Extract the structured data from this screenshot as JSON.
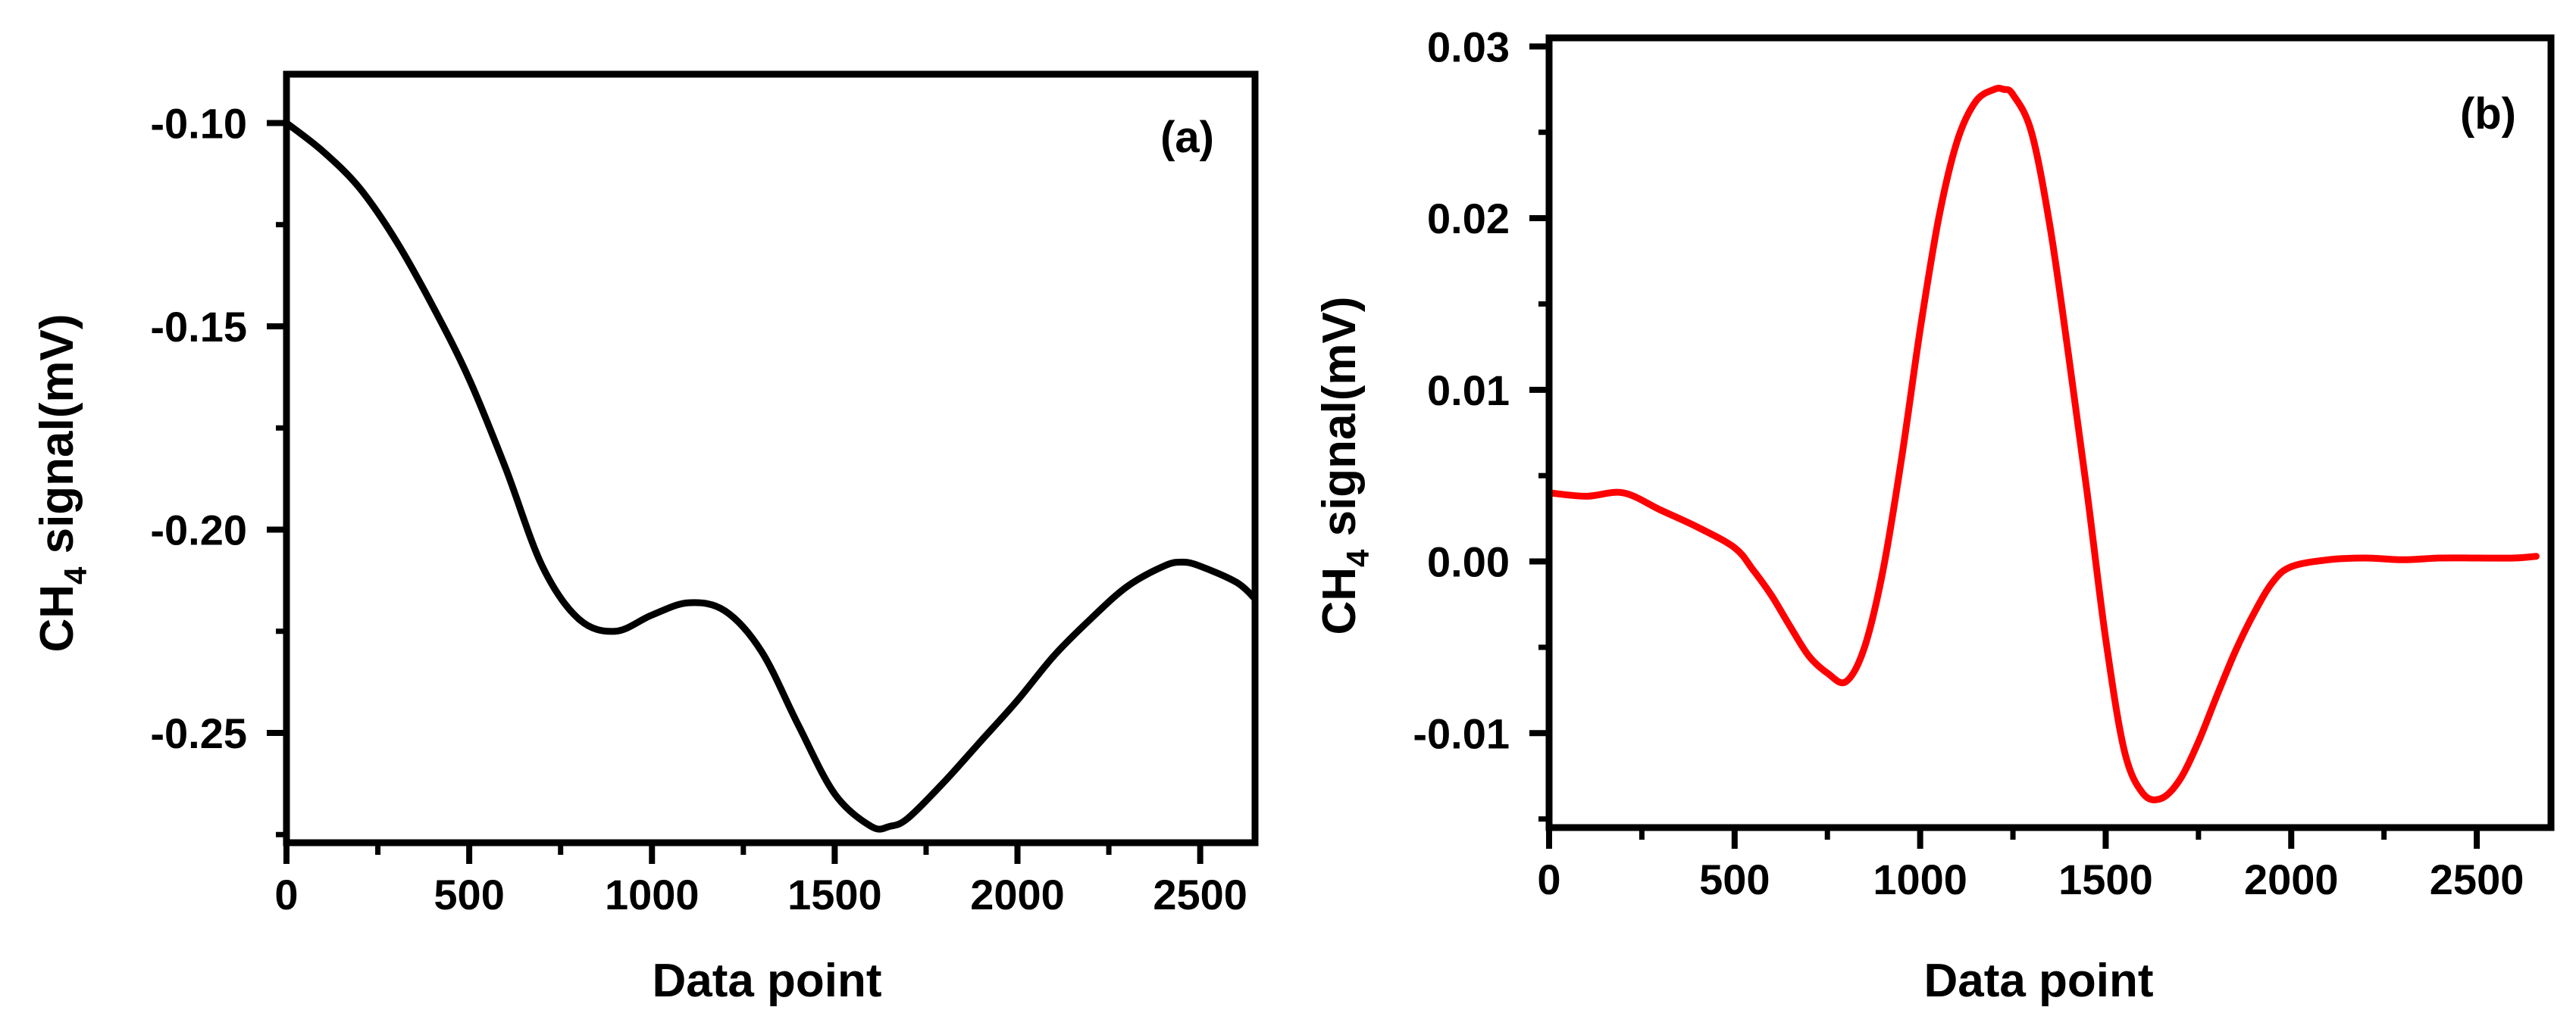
{
  "chart_data": [
    {
      "type": "line",
      "panel_label": "(a)",
      "title": "",
      "xlabel": "Data point",
      "ylabel": {
        "prefix": "CH",
        "subscript": "4",
        "suffix": " signal(mV)"
      },
      "xlim": [
        0,
        2650
      ],
      "ylim": [
        -0.277,
        -0.088
      ],
      "xticks": [
        0,
        500,
        1000,
        1500,
        2000,
        2500
      ],
      "xtick_labels": [
        "0",
        "500",
        "1000",
        "1500",
        "2000",
        "2500"
      ],
      "yticks": [
        -0.1,
        -0.15,
        -0.2,
        -0.25
      ],
      "ytick_labels": [
        "-0.10",
        "-0.15",
        "-0.20",
        "-0.25"
      ],
      "grid": false,
      "series": [
        {
          "name": "CH4 signal",
          "color": "#000000",
          "x": [
            0,
            100,
            200,
            300,
            400,
            500,
            600,
            700,
            800,
            900,
            1000,
            1100,
            1200,
            1300,
            1400,
            1500,
            1600,
            1650,
            1700,
            1800,
            1900,
            2000,
            2100,
            2200,
            2300,
            2400,
            2450,
            2500,
            2600,
            2650
          ],
          "y": [
            -0.1,
            -0.107,
            -0.116,
            -0.129,
            -0.145,
            -0.163,
            -0.185,
            -0.209,
            -0.222,
            -0.225,
            -0.221,
            -0.218,
            -0.22,
            -0.23,
            -0.248,
            -0.265,
            -0.273,
            -0.273,
            -0.271,
            -0.262,
            -0.252,
            -0.242,
            -0.231,
            -0.222,
            -0.214,
            -0.209,
            -0.208,
            -0.209,
            -0.213,
            -0.217
          ]
        }
      ]
    },
    {
      "type": "line",
      "panel_label": "(b)",
      "title": "",
      "xlabel": "Data point",
      "ylabel": {
        "prefix": "CH",
        "subscript": "4",
        "suffix": " signal(mV)"
      },
      "xlim": [
        0,
        2700
      ],
      "ylim": [
        -0.0155,
        0.0305
      ],
      "xticks": [
        0,
        500,
        1000,
        1500,
        2000,
        2500
      ],
      "xtick_labels": [
        "0",
        "500",
        "1000",
        "1500",
        "2000",
        "2500"
      ],
      "yticks": [
        0.03,
        0.02,
        0.01,
        0.0,
        -0.01
      ],
      "ytick_labels": [
        "0.03",
        "0.02",
        "0.01",
        "0.00",
        "-0.01"
      ],
      "grid": false,
      "series": [
        {
          "name": "CH4 signal",
          "color": "#ff0000",
          "x": [
            0,
            100,
            200,
            300,
            400,
            500,
            550,
            600,
            650,
            700,
            750,
            800,
            850,
            900,
            950,
            1000,
            1050,
            1100,
            1150,
            1200,
            1225,
            1250,
            1300,
            1350,
            1400,
            1450,
            1500,
            1550,
            1600,
            1650,
            1700,
            1750,
            1800,
            1850,
            1900,
            1950,
            2000,
            2100,
            2200,
            2300,
            2400,
            2500,
            2600,
            2660
          ],
          "y": [
            0.004,
            0.0038,
            0.004,
            0.003,
            0.002,
            0.0008,
            -0.0005,
            -0.002,
            -0.0038,
            -0.0055,
            -0.0065,
            -0.007,
            -0.005,
            -0.0005,
            0.006,
            0.0135,
            0.02,
            0.0245,
            0.0268,
            0.0275,
            0.0275,
            0.0272,
            0.025,
            0.0195,
            0.012,
            0.004,
            -0.0045,
            -0.011,
            -0.0135,
            -0.0138,
            -0.0127,
            -0.0105,
            -0.0078,
            -0.0052,
            -0.003,
            -0.0012,
            -0.0003,
            0.0001,
            0.0002,
            0.0001,
            0.0002,
            0.0002,
            0.0002,
            0.0003
          ]
        }
      ]
    }
  ]
}
